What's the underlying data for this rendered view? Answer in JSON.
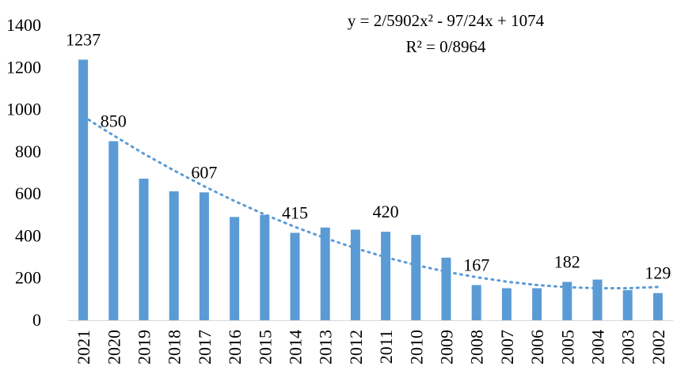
{
  "chart_data": {
    "type": "bar",
    "categories": [
      "2021",
      "2020",
      "2019",
      "2018",
      "2017",
      "2016",
      "2015",
      "2014",
      "2013",
      "2012",
      "2011",
      "2010",
      "2009",
      "2008",
      "2007",
      "2006",
      "2005",
      "2004",
      "2003",
      "2002"
    ],
    "series": [
      {
        "values": [
          1237,
          850,
          672,
          612,
          607,
          490,
          500,
          415,
          440,
          430,
          420,
          405,
          297,
          167,
          152,
          152,
          182,
          193,
          143,
          129
        ],
        "color": "#5B9BD5"
      }
    ],
    "data_labels": [
      {
        "index": 0,
        "text": "1237"
      },
      {
        "index": 1,
        "text": "850"
      },
      {
        "index": 4,
        "text": "607"
      },
      {
        "index": 7,
        "text": "415"
      },
      {
        "index": 10,
        "text": "420"
      },
      {
        "index": 13,
        "text": "167"
      },
      {
        "index": 16,
        "text": "182"
      },
      {
        "index": 19,
        "text": "129"
      }
    ],
    "trendline": {
      "type": "polynomial-2",
      "style": "dotted",
      "color": "#5B9BD5",
      "equation": "y = 2/5902x² - 97/24x + 1074",
      "r_squared": "R² = 0/8964",
      "points": [
        968,
        877,
        791,
        711,
        636,
        566,
        502,
        443,
        390,
        342,
        299,
        262,
        230,
        204,
        183,
        167,
        157,
        152,
        152,
        158
      ]
    },
    "title": "",
    "xlabel": "",
    "ylabel": "",
    "ylim": [
      0,
      1400
    ],
    "y_ticks": [
      "0",
      "200",
      "400",
      "600",
      "800",
      "1000",
      "1200",
      "1400"
    ],
    "grid": false,
    "legend": "none"
  }
}
